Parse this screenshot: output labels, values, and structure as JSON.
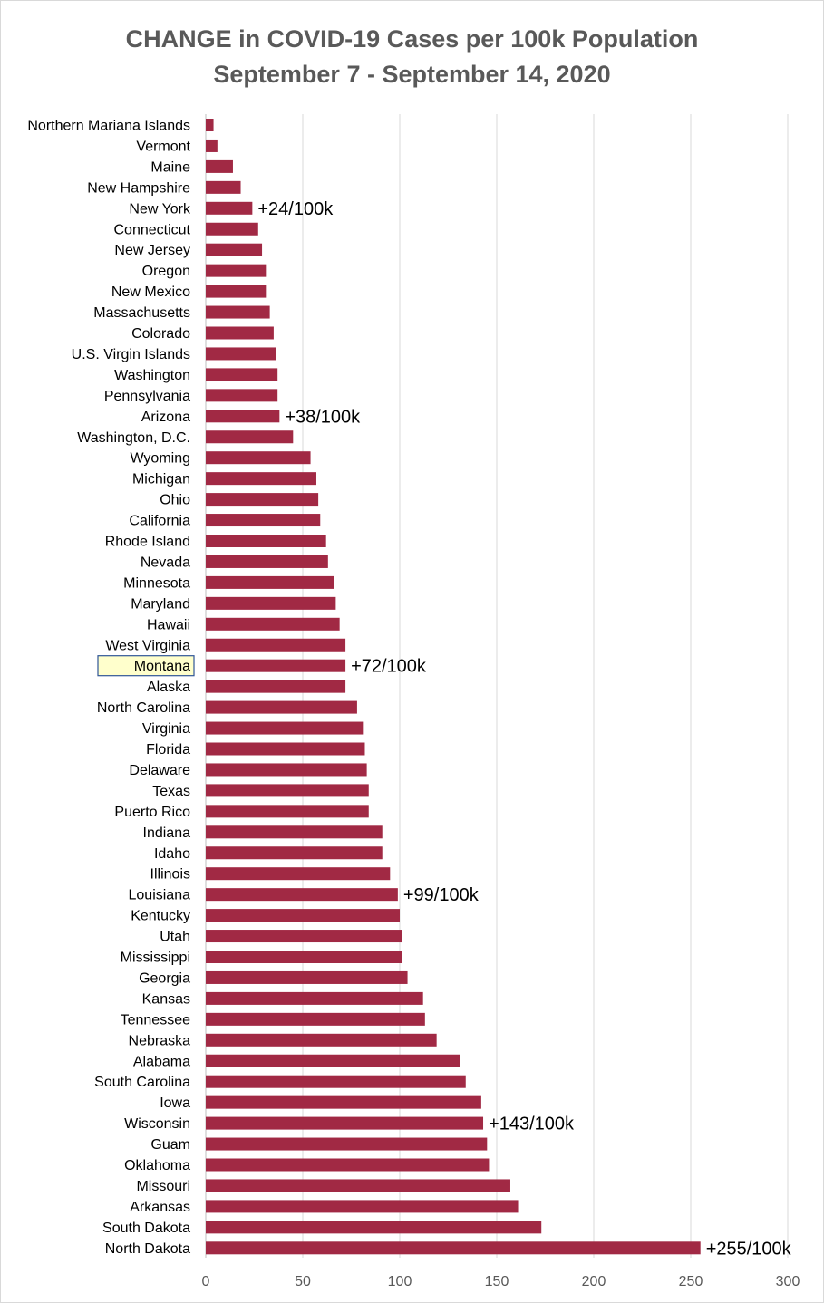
{
  "chart_data": {
    "type": "bar",
    "orientation": "horizontal",
    "title": "CHANGE in COVID-19 Cases per 100k Population",
    "subtitle": "September 7 - September 14, 2020",
    "xlabel": "",
    "ylabel": "",
    "xlim": [
      0,
      300
    ],
    "xticks": [
      0,
      50,
      100,
      150,
      200,
      250,
      300
    ],
    "grid": "vertical",
    "legend": "none",
    "bar_color": "#A12944",
    "highlight_color": "#FFFFCC",
    "highlight_border_color": "#2F5597",
    "highlighted_category": "Montana",
    "categories": [
      "Northern Mariana Islands",
      "Vermont",
      "Maine",
      "New Hampshire",
      "New York",
      "Connecticut",
      "New Jersey",
      "Oregon",
      "New Mexico",
      "Massachusetts",
      "Colorado",
      "U.S. Virgin Islands",
      "Washington",
      "Pennsylvania",
      "Arizona",
      "Washington, D.C.",
      "Wyoming",
      "Michigan",
      "Ohio",
      "California",
      "Rhode Island",
      "Nevada",
      "Minnesota",
      "Maryland",
      "Hawaii",
      "West Virginia",
      "Montana",
      "Alaska",
      "North Carolina",
      "Virginia",
      "Florida",
      "Delaware",
      "Texas",
      "Puerto Rico",
      "Indiana",
      "Idaho",
      "Illinois",
      "Louisiana",
      "Kentucky",
      "Utah",
      "Mississippi",
      "Georgia",
      "Kansas",
      "Tennessee",
      "Nebraska",
      "Alabama",
      "South Carolina",
      "Iowa",
      "Wisconsin",
      "Guam",
      "Oklahoma",
      "Missouri",
      "Arkansas",
      "South Dakota",
      "North Dakota"
    ],
    "values": [
      4,
      6,
      14,
      18,
      24,
      27,
      29,
      31,
      31,
      33,
      35,
      36,
      37,
      37,
      38,
      45,
      54,
      57,
      58,
      59,
      62,
      63,
      66,
      67,
      69,
      72,
      72,
      72,
      78,
      81,
      82,
      83,
      84,
      84,
      91,
      91,
      95,
      99,
      100,
      101,
      101,
      104,
      112,
      113,
      119,
      131,
      134,
      142,
      143,
      145,
      146,
      157,
      161,
      173,
      255
    ],
    "annotations": [
      {
        "category": "New York",
        "text": "+24/100k"
      },
      {
        "category": "Arizona",
        "text": "+38/100k"
      },
      {
        "category": "Montana",
        "text": "+72/100k"
      },
      {
        "category": "Louisiana",
        "text": "+99/100k"
      },
      {
        "category": "Wisconsin",
        "text": "+143/100k"
      },
      {
        "category": "North Dakota",
        "text": "+255/100k"
      }
    ]
  }
}
